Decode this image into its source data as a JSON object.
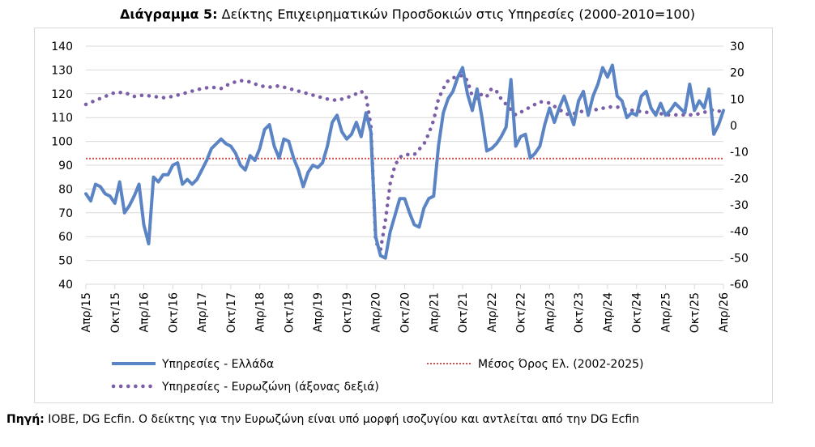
{
  "title_bold": "Διάγραμμα 5:",
  "title_text": "Δείκτης Επιχειρηματικών Προσδοκιών στις Υπηρεσίες (2000-2010=100)",
  "source_bold": "Πηγή:",
  "source_text": "IOBE, DG Ecfin. Ο δείκτης για την Ευρωζώνη είναι υπό μορφή ισοζυγίου και αντλείται από την DG Ecfin",
  "colors": {
    "greece": "#5b84c4",
    "eurozone": "#7b5ea7",
    "mean": "#d34d4d",
    "grid": "#d9d9d9",
    "axis": "#595959"
  },
  "chart_data": {
    "type": "line",
    "x_tick_labels": [
      "Απρ/15",
      "Οκτ/15",
      "Απρ/16",
      "Οκτ/16",
      "Απρ/17",
      "Οκτ/17",
      "Απρ/18",
      "Οκτ/18",
      "Απρ/19",
      "Οκτ/19",
      "Απρ/20",
      "Οκτ/20",
      "Απρ/21",
      "Οκτ/21",
      "Απρ/22",
      "Οκτ/22",
      "Απρ/23",
      "Οκτ/23",
      "Απρ/24",
      "Οκτ/24",
      "Απρ/25",
      "Οκτ/25",
      "Απρ/26"
    ],
    "x_start": "2015-04",
    "x_end": "2026-04",
    "y_left_lim": [
      40,
      140
    ],
    "y_left_ticks": [
      40,
      50,
      60,
      70,
      80,
      90,
      100,
      110,
      120,
      130,
      140
    ],
    "y_right_lim": [
      -60,
      30
    ],
    "y_right_ticks": [
      -60,
      -50,
      -40,
      -30,
      -20,
      -10,
      0,
      10,
      20,
      30
    ],
    "grid": "horizontal",
    "legend_position": "bottom",
    "series": [
      {
        "name": "Υπηρεσίες  - Ελλάδα",
        "axis": "left",
        "style": "solid",
        "values": [
          [
            "2015-04",
            78
          ],
          [
            "2015-05",
            75
          ],
          [
            "2015-06",
            82
          ],
          [
            "2015-07",
            81
          ],
          [
            "2015-08",
            78
          ],
          [
            "2015-09",
            77
          ],
          [
            "2015-10",
            74
          ],
          [
            "2015-11",
            83
          ],
          [
            "2015-12",
            70
          ],
          [
            "2016-01",
            73
          ],
          [
            "2016-02",
            77
          ],
          [
            "2016-03",
            82
          ],
          [
            "2016-04",
            65
          ],
          [
            "2016-05",
            57
          ],
          [
            "2016-06",
            85
          ],
          [
            "2016-07",
            83
          ],
          [
            "2016-08",
            86
          ],
          [
            "2016-09",
            86
          ],
          [
            "2016-10",
            90
          ],
          [
            "2016-11",
            91
          ],
          [
            "2016-12",
            82
          ],
          [
            "2017-01",
            84
          ],
          [
            "2017-02",
            82
          ],
          [
            "2017-03",
            84
          ],
          [
            "2017-04",
            88
          ],
          [
            "2017-05",
            92
          ],
          [
            "2017-06",
            97
          ],
          [
            "2017-07",
            99
          ],
          [
            "2017-08",
            101
          ],
          [
            "2017-09",
            99
          ],
          [
            "2017-10",
            98
          ],
          [
            "2017-11",
            95
          ],
          [
            "2017-12",
            90
          ],
          [
            "2018-01",
            88
          ],
          [
            "2018-02",
            94
          ],
          [
            "2018-03",
            92
          ],
          [
            "2018-04",
            97
          ],
          [
            "2018-05",
            105
          ],
          [
            "2018-06",
            107
          ],
          [
            "2018-07",
            98
          ],
          [
            "2018-08",
            93
          ],
          [
            "2018-09",
            101
          ],
          [
            "2018-10",
            100
          ],
          [
            "2018-11",
            93
          ],
          [
            "2018-12",
            88
          ],
          [
            "2019-01",
            81
          ],
          [
            "2019-02",
            87
          ],
          [
            "2019-03",
            90
          ],
          [
            "2019-04",
            89
          ],
          [
            "2019-05",
            91
          ],
          [
            "2019-06",
            98
          ],
          [
            "2019-07",
            108
          ],
          [
            "2019-08",
            111
          ],
          [
            "2019-09",
            104
          ],
          [
            "2019-10",
            101
          ],
          [
            "2019-11",
            103
          ],
          [
            "2019-12",
            108
          ],
          [
            "2020-01",
            102
          ],
          [
            "2020-02",
            112
          ],
          [
            "2020-03",
            104
          ],
          [
            "2020-04",
            60
          ],
          [
            "2020-05",
            52
          ],
          [
            "2020-06",
            51
          ],
          [
            "2020-07",
            62
          ],
          [
            "2020-08",
            69
          ],
          [
            "2020-09",
            76
          ],
          [
            "2020-10",
            76
          ],
          [
            "2020-11",
            70
          ],
          [
            "2020-12",
            65
          ],
          [
            "2021-01",
            64
          ],
          [
            "2021-02",
            72
          ],
          [
            "2021-03",
            76
          ],
          [
            "2021-04",
            77
          ],
          [
            "2021-05",
            98
          ],
          [
            "2021-06",
            112
          ],
          [
            "2021-07",
            118
          ],
          [
            "2021-08",
            121
          ],
          [
            "2021-09",
            127
          ],
          [
            "2021-10",
            131
          ],
          [
            "2021-11",
            120
          ],
          [
            "2021-12",
            113
          ],
          [
            "2022-01",
            122
          ],
          [
            "2022-02",
            110
          ],
          [
            "2022-03",
            96
          ],
          [
            "2022-04",
            97
          ],
          [
            "2022-05",
            99
          ],
          [
            "2022-06",
            102
          ],
          [
            "2022-07",
            106
          ],
          [
            "2022-08",
            126
          ],
          [
            "2022-09",
            98
          ],
          [
            "2022-10",
            102
          ],
          [
            "2022-11",
            103
          ],
          [
            "2022-12",
            93
          ],
          [
            "2023-01",
            95
          ],
          [
            "2023-02",
            98
          ],
          [
            "2023-03",
            107
          ],
          [
            "2023-04",
            114
          ],
          [
            "2023-05",
            108
          ],
          [
            "2023-06",
            114
          ],
          [
            "2023-07",
            119
          ],
          [
            "2023-08",
            113
          ],
          [
            "2023-09",
            107
          ],
          [
            "2023-10",
            117
          ],
          [
            "2023-11",
            121
          ],
          [
            "2023-12",
            111
          ],
          [
            "2024-01",
            119
          ],
          [
            "2024-02",
            124
          ],
          [
            "2024-03",
            131
          ],
          [
            "2024-04",
            127
          ],
          [
            "2024-05",
            132
          ],
          [
            "2024-06",
            119
          ],
          [
            "2024-07",
            117
          ],
          [
            "2024-08",
            110
          ],
          [
            "2024-09",
            112
          ],
          [
            "2024-10",
            111
          ],
          [
            "2024-11",
            119
          ],
          [
            "2024-12",
            121
          ],
          [
            "2025-01",
            114
          ],
          [
            "2025-02",
            111
          ],
          [
            "2025-03",
            116
          ],
          [
            "2025-04",
            111
          ],
          [
            "2025-05",
            113
          ],
          [
            "2025-06",
            116
          ],
          [
            "2025-07",
            114
          ],
          [
            "2025-08",
            112
          ],
          [
            "2025-09",
            124
          ],
          [
            "2025-10",
            113
          ],
          [
            "2025-11",
            117
          ],
          [
            "2025-12",
            114
          ],
          [
            "2026-01",
            122
          ],
          [
            "2026-02",
            103
          ],
          [
            "2026-03",
            107
          ],
          [
            "2026-04",
            113
          ]
        ]
      },
      {
        "name": "Υπηρεσίες - Ευρωζώνη (άξονας δεξιά)",
        "axis": "right",
        "style": "dotted",
        "values": [
          [
            "2015-04",
            8
          ],
          [
            "2015-06",
            9.5
          ],
          [
            "2015-08",
            11
          ],
          [
            "2015-10",
            12.5
          ],
          [
            "2015-12",
            12.5
          ],
          [
            "2016-02",
            11
          ],
          [
            "2016-04",
            11.5
          ],
          [
            "2016-06",
            11
          ],
          [
            "2016-08",
            10.5
          ],
          [
            "2016-10",
            11
          ],
          [
            "2016-12",
            12
          ],
          [
            "2017-02",
            13
          ],
          [
            "2017-04",
            14
          ],
          [
            "2017-06",
            14.5
          ],
          [
            "2017-08",
            14
          ],
          [
            "2017-10",
            16
          ],
          [
            "2017-12",
            17
          ],
          [
            "2018-02",
            16.5
          ],
          [
            "2018-04",
            15
          ],
          [
            "2018-06",
            14.5
          ],
          [
            "2018-08",
            15
          ],
          [
            "2018-10",
            14
          ],
          [
            "2018-12",
            13
          ],
          [
            "2019-02",
            12
          ],
          [
            "2019-04",
            11
          ],
          [
            "2019-06",
            10
          ],
          [
            "2019-08",
            9.5
          ],
          [
            "2019-10",
            10.5
          ],
          [
            "2019-12",
            12
          ],
          [
            "2020-01",
            13
          ],
          [
            "2020-02",
            11
          ],
          [
            "2020-03",
            0
          ],
          [
            "2020-04",
            -44
          ],
          [
            "2020-05",
            -47
          ],
          [
            "2020-06",
            -36
          ],
          [
            "2020-07",
            -22
          ],
          [
            "2020-08",
            -15
          ],
          [
            "2020-09",
            -12
          ],
          [
            "2020-10",
            -11
          ],
          [
            "2020-11",
            -11
          ],
          [
            "2020-12",
            -11
          ],
          [
            "2021-01",
            -9
          ],
          [
            "2021-02",
            -7
          ],
          [
            "2021-03",
            -3
          ],
          [
            "2021-04",
            2
          ],
          [
            "2021-05",
            10
          ],
          [
            "2021-06",
            14
          ],
          [
            "2021-07",
            17
          ],
          [
            "2021-08",
            18
          ],
          [
            "2021-09",
            18.5
          ],
          [
            "2021-10",
            19
          ],
          [
            "2021-11",
            17
          ],
          [
            "2021-12",
            11
          ],
          [
            "2022-01",
            10
          ],
          [
            "2022-02",
            12
          ],
          [
            "2022-03",
            11
          ],
          [
            "2022-04",
            14
          ],
          [
            "2022-05",
            13
          ],
          [
            "2022-06",
            10
          ],
          [
            "2022-07",
            8
          ],
          [
            "2022-08",
            6
          ],
          [
            "2022-09",
            4
          ],
          [
            "2022-10",
            5
          ],
          [
            "2022-11",
            6
          ],
          [
            "2022-12",
            7
          ],
          [
            "2023-02",
            9
          ],
          [
            "2023-04",
            8.5
          ],
          [
            "2023-06",
            6
          ],
          [
            "2023-08",
            4
          ],
          [
            "2023-10",
            5
          ],
          [
            "2023-12",
            6
          ],
          [
            "2024-02",
            6
          ],
          [
            "2024-04",
            7
          ],
          [
            "2024-06",
            7
          ],
          [
            "2024-08",
            6
          ],
          [
            "2024-10",
            5.5
          ],
          [
            "2024-12",
            5
          ],
          [
            "2025-02",
            5
          ],
          [
            "2025-04",
            4
          ],
          [
            "2025-06",
            4
          ],
          [
            "2025-08",
            4
          ],
          [
            "2025-10",
            4
          ],
          [
            "2025-12",
            5
          ],
          [
            "2026-02",
            6
          ],
          [
            "2026-04",
            5
          ]
        ]
      },
      {
        "name": "Μέσος Όρος Ελ. (2002-2025)",
        "axis": "left",
        "style": "dotted",
        "values": [
          [
            "2015-04",
            92.8
          ],
          [
            "2026-04",
            92.8
          ]
        ]
      }
    ]
  }
}
